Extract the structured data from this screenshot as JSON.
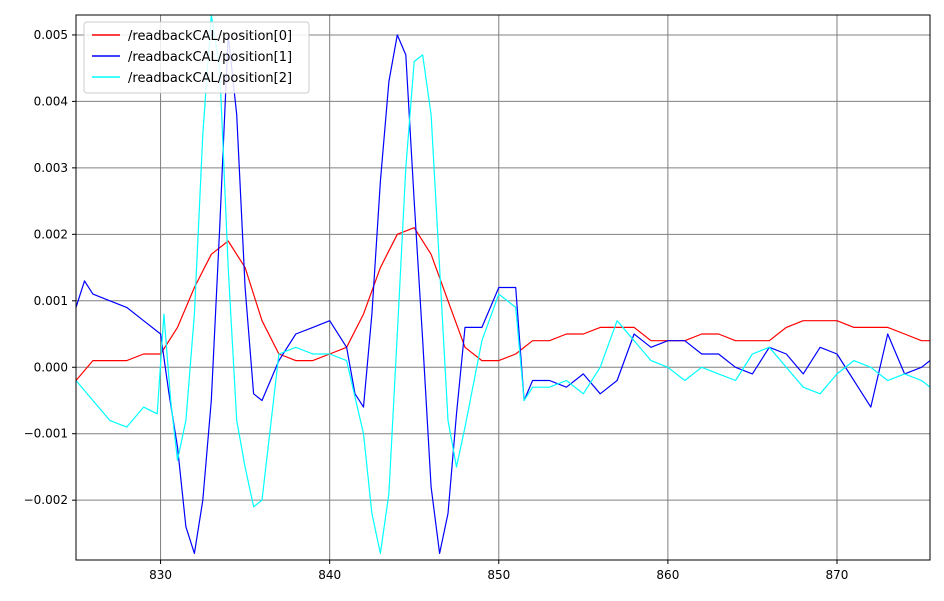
{
  "chart_data": {
    "type": "line",
    "title": "",
    "xlabel": "",
    "ylabel": "",
    "xlim": [
      825,
      875.5
    ],
    "ylim": [
      -0.0029,
      0.0053
    ],
    "x_ticks": [
      830,
      840,
      850,
      860,
      870
    ],
    "x_tick_labels": [
      "830",
      "840",
      "850",
      "860",
      "870"
    ],
    "y_ticks": [
      -0.002,
      -0.001,
      0.0,
      0.001,
      0.002,
      0.003,
      0.004,
      0.005
    ],
    "y_tick_labels": [
      "−0.002",
      "−0.001",
      "0.000",
      "0.001",
      "0.002",
      "0.003",
      "0.004",
      "0.005"
    ],
    "grid": true,
    "legend_position": "top-left",
    "series": [
      {
        "name": "/readbackCAL/position[0]",
        "color": "#ff0000",
        "x": [
          825,
          826,
          827,
          828,
          829,
          830,
          831,
          832,
          833,
          834,
          835,
          836,
          837,
          838,
          839,
          840,
          841,
          842,
          843,
          844,
          845,
          846,
          847,
          848,
          849,
          850,
          851,
          852,
          853,
          854,
          855,
          856,
          857,
          858,
          859,
          860,
          861,
          862,
          863,
          864,
          865,
          866,
          867,
          868,
          869,
          870,
          871,
          872,
          873,
          874,
          875,
          875.5
        ],
        "y": [
          -0.0002,
          0.0001,
          0.0001,
          0.0001,
          0.0002,
          0.0002,
          0.0006,
          0.0012,
          0.0017,
          0.0019,
          0.0015,
          0.0007,
          0.0002,
          0.0001,
          0.0001,
          0.0002,
          0.0003,
          0.0008,
          0.0015,
          0.002,
          0.0021,
          0.0017,
          0.001,
          0.0003,
          0.0001,
          0.0001,
          0.0002,
          0.0004,
          0.0004,
          0.0005,
          0.0005,
          0.0006,
          0.0006,
          0.0006,
          0.0004,
          0.0004,
          0.0004,
          0.0005,
          0.0005,
          0.0004,
          0.0004,
          0.0004,
          0.0006,
          0.0007,
          0.0007,
          0.0007,
          0.0006,
          0.0006,
          0.0006,
          0.0005,
          0.0004,
          0.0004
        ]
      },
      {
        "name": "/readbackCAL/position[1]",
        "color": "#0000ff",
        "x": [
          825,
          825.5,
          826,
          827,
          828,
          829,
          830,
          830.5,
          831,
          831.5,
          832,
          832.5,
          833,
          833.5,
          834,
          834.5,
          835,
          835.5,
          836,
          837,
          838,
          839,
          840,
          841,
          841.5,
          842,
          842.5,
          843,
          843.5,
          844,
          844.5,
          845,
          845.5,
          846,
          846.5,
          847,
          847.5,
          848,
          849,
          850,
          851,
          851.5,
          852,
          853,
          854,
          855,
          856,
          857,
          858,
          859,
          860,
          861,
          862,
          863,
          864,
          865,
          866,
          867,
          868,
          869,
          870,
          871,
          872,
          873,
          874,
          875,
          875.5
        ],
        "y": [
          0.0009,
          0.0013,
          0.0011,
          0.001,
          0.0009,
          0.0007,
          0.0005,
          -0.0004,
          -0.0012,
          -0.0024,
          -0.0028,
          -0.002,
          -0.0005,
          0.0021,
          0.005,
          0.0038,
          0.0012,
          -0.0004,
          -0.0005,
          0.0001,
          0.0005,
          0.0006,
          0.0007,
          0.0003,
          -0.0004,
          -0.0006,
          0.0008,
          0.0028,
          0.0043,
          0.005,
          0.0047,
          0.0025,
          0.0004,
          -0.0018,
          -0.0028,
          -0.0022,
          -0.0007,
          0.0006,
          0.0006,
          0.0012,
          0.0012,
          -0.0005,
          -0.0002,
          -0.0002,
          -0.0003,
          -0.0001,
          -0.0004,
          -0.0002,
          0.0005,
          0.0003,
          0.0004,
          0.0004,
          0.0002,
          0.0002,
          0.0,
          -0.0001,
          0.0003,
          0.0002,
          -0.0001,
          0.0003,
          0.0002,
          -0.0002,
          -0.0006,
          0.0005,
          -0.0001,
          0.0,
          0.0001
        ]
      },
      {
        "name": "/readbackCAL/position[2]",
        "color": "#00ffff",
        "x": [
          825,
          826,
          827,
          828,
          829,
          829.8,
          830.2,
          830.6,
          831,
          831.5,
          832,
          832.5,
          833,
          833.5,
          834,
          834.5,
          835,
          835.5,
          836,
          837,
          838,
          839,
          840,
          841,
          842,
          842.5,
          843,
          843.5,
          844,
          844.5,
          845,
          845.5,
          846,
          846.5,
          847,
          847.5,
          848,
          849,
          850,
          851,
          851.5,
          852,
          853,
          854,
          855,
          856,
          857,
          858,
          859,
          860,
          861,
          862,
          863,
          864,
          865,
          866,
          867,
          868,
          869,
          870,
          871,
          872,
          873,
          874,
          875,
          875.5
        ],
        "y": [
          -0.0002,
          -0.0005,
          -0.0008,
          -0.0009,
          -0.0006,
          -0.0007,
          0.0008,
          -0.0005,
          -0.0014,
          -0.0008,
          0.0008,
          0.0035,
          0.0053,
          0.0045,
          0.0015,
          -0.0008,
          -0.0015,
          -0.0021,
          -0.002,
          0.0002,
          0.0003,
          0.0002,
          0.0002,
          0.0001,
          -0.001,
          -0.0022,
          -0.0028,
          -0.0019,
          0.0005,
          0.003,
          0.0046,
          0.0047,
          0.0038,
          0.0015,
          -0.0008,
          -0.0015,
          -0.0009,
          0.0004,
          0.0011,
          0.0009,
          -0.0005,
          -0.0003,
          -0.0003,
          -0.0002,
          -0.0004,
          0.0,
          0.0007,
          0.0004,
          0.0001,
          0.0,
          -0.0002,
          0.0,
          -0.0001,
          -0.0002,
          0.0002,
          0.0003,
          0.0,
          -0.0003,
          -0.0004,
          -0.0001,
          0.0001,
          0.0,
          -0.0002,
          -0.0001,
          -0.0002,
          -0.0003
        ]
      }
    ]
  }
}
